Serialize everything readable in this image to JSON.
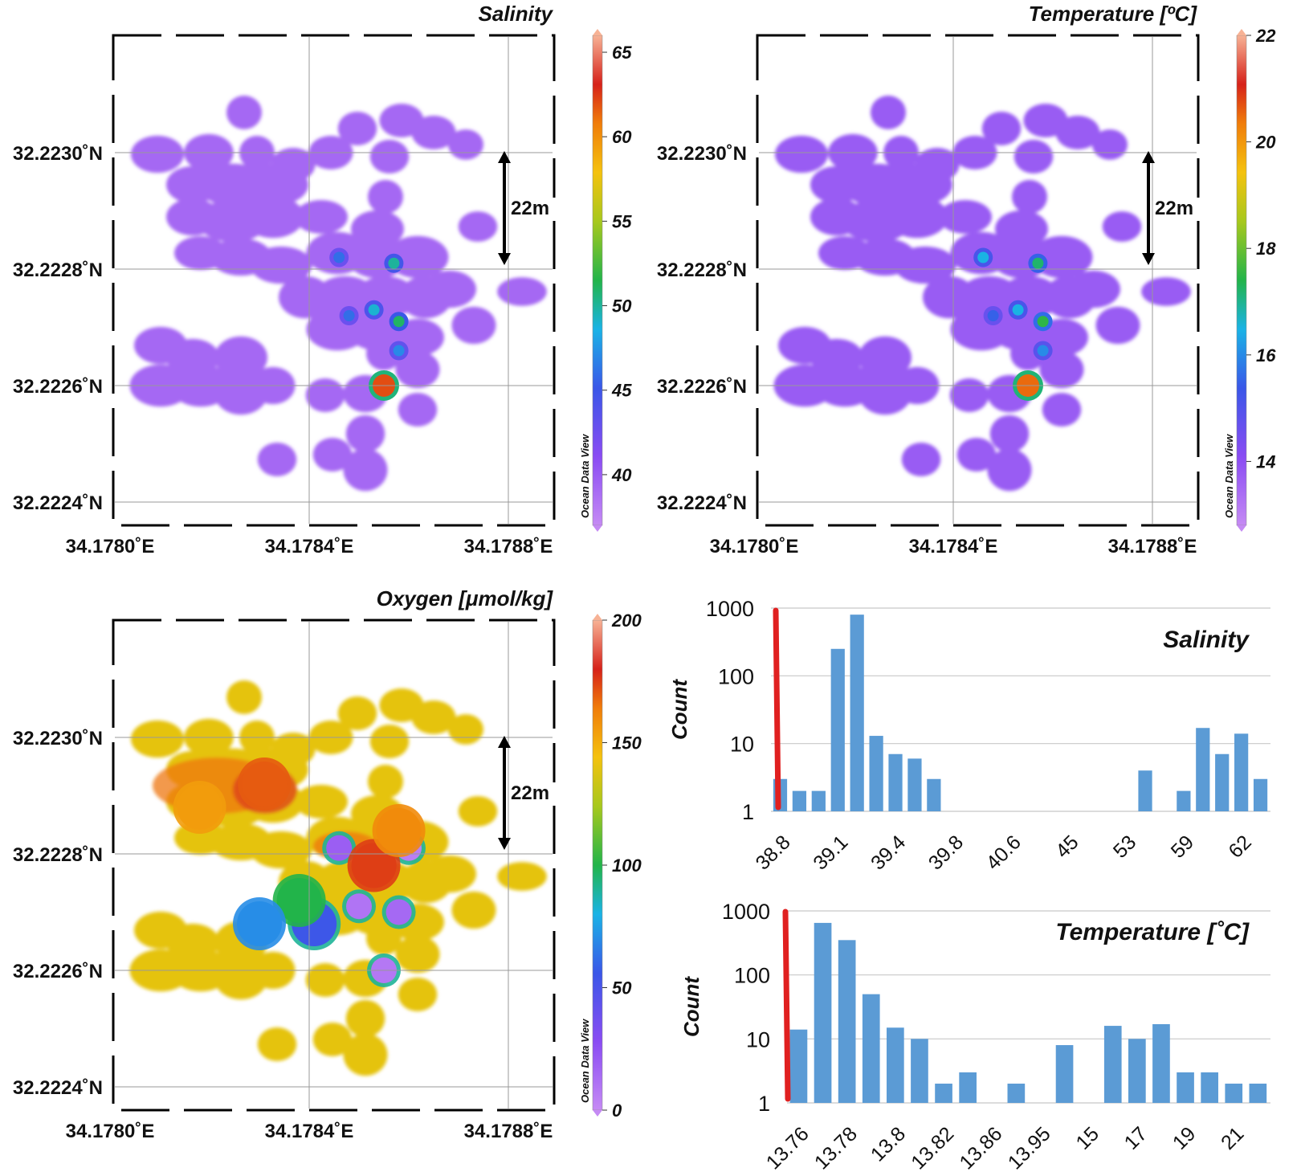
{
  "figure": {
    "map_axis": {
      "lat_labels": [
        "32.2230˚N",
        "32.2228˚N",
        "32.2226˚N",
        "32.2224˚N"
      ],
      "lon_labels": [
        "34.1780˚E",
        "34.1784˚E",
        "34.1788˚E"
      ],
      "lat_values": [
        32.223,
        32.2228,
        32.2226,
        32.2224
      ],
      "lon_values": [
        34.178,
        34.1784,
        34.1788
      ],
      "scale_bar_label": "22m",
      "watermark": "Ocean Data View"
    }
  },
  "chart_data": [
    {
      "type": "heatmap",
      "panel": "salinity-map",
      "title": "Salinity",
      "colorbar": {
        "ticks": [
          "65",
          "60",
          "55",
          "50",
          "45",
          "40"
        ],
        "min": 37,
        "max": 66
      },
      "background_value": 39.2,
      "hotspots": [
        {
          "lon": 34.17855,
          "lat": 32.2226,
          "value": 62
        },
        {
          "lon": 34.17858,
          "lat": 32.22271,
          "value": 51
        },
        {
          "lon": 34.17857,
          "lat": 32.22281,
          "value": 50
        },
        {
          "lon": 34.17853,
          "lat": 32.22273,
          "value": 49
        },
        {
          "lon": 34.17848,
          "lat": 32.22272,
          "value": 46
        },
        {
          "lon": 34.17846,
          "lat": 32.22282,
          "value": 46
        },
        {
          "lon": 34.17858,
          "lat": 32.22266,
          "value": 47
        }
      ]
    },
    {
      "type": "heatmap",
      "panel": "temperature-map",
      "title": "Temperature [ºC]",
      "colorbar": {
        "ticks": [
          "22",
          "20",
          "18",
          "16",
          "14"
        ],
        "min": 12.8,
        "max": 22
      },
      "background_value": 13.77,
      "hotspots": [
        {
          "lon": 34.17855,
          "lat": 32.2226,
          "value": 20.5
        },
        {
          "lon": 34.17858,
          "lat": 32.22271,
          "value": 17.5
        },
        {
          "lon": 34.17857,
          "lat": 32.22281,
          "value": 17.2
        },
        {
          "lon": 34.17853,
          "lat": 32.22273,
          "value": 16.5
        },
        {
          "lon": 34.17848,
          "lat": 32.22272,
          "value": 15.5
        },
        {
          "lon": 34.17846,
          "lat": 32.22282,
          "value": 16.5
        },
        {
          "lon": 34.17858,
          "lat": 32.22266,
          "value": 16.0
        }
      ]
    },
    {
      "type": "heatmap",
      "panel": "oxygen-map",
      "title": "Oxygen [μmol/kg]",
      "colorbar": {
        "ticks": [
          "200",
          "150",
          "100",
          "50",
          "0"
        ],
        "min": 0,
        "max": 200
      },
      "background_value": 140,
      "hotspots": [
        {
          "lon": 34.17855,
          "lat": 32.2226,
          "value": 8
        },
        {
          "lon": 34.17858,
          "lat": 32.2227,
          "value": 15
        },
        {
          "lon": 34.1785,
          "lat": 32.22271,
          "value": 10
        },
        {
          "lon": 34.17846,
          "lat": 32.22281,
          "value": 20
        },
        {
          "lon": 34.1786,
          "lat": 32.22281,
          "value": 5
        },
        {
          "lon": 34.17841,
          "lat": 32.22268,
          "value": 55
        },
        {
          "lon": 34.17838,
          "lat": 32.22272,
          "value": 100
        },
        {
          "lon": 34.1783,
          "lat": 32.22268,
          "value": 70
        },
        {
          "lon": 34.17831,
          "lat": 32.22292,
          "value": 170
        },
        {
          "lon": 34.17853,
          "lat": 32.22278,
          "value": 175
        },
        {
          "lon": 34.17858,
          "lat": 32.22284,
          "value": 160
        },
        {
          "lon": 34.17818,
          "lat": 32.22288,
          "value": 155
        }
      ]
    },
    {
      "type": "bar",
      "panel": "salinity-histogram",
      "title": "Salinity",
      "ylabel": "Count",
      "yscale": "log",
      "ylim": [
        1,
        1000
      ],
      "yticks": [
        "1000",
        "100",
        "10",
        "1"
      ],
      "xtick_labels": [
        "38.8",
        "39.1",
        "39.4",
        "39.8",
        "40.6",
        "45",
        "53",
        "59",
        "62"
      ],
      "values": [
        3,
        2,
        2,
        250,
        800,
        13,
        7,
        6,
        3,
        0,
        0,
        0,
        0,
        0,
        0,
        0,
        0,
        0,
        0,
        4,
        0,
        2,
        17,
        7,
        14,
        3
      ],
      "detection_limit_line": true
    },
    {
      "type": "bar",
      "panel": "temperature-histogram",
      "title": "Temperature [˚C]",
      "ylabel": "Count",
      "yscale": "log",
      "ylim": [
        1,
        1000
      ],
      "yticks": [
        "1000",
        "100",
        "10",
        "1"
      ],
      "xtick_labels": [
        "13.76",
        "13.78",
        "13.8",
        "13.82",
        "13.86",
        "13.95",
        "15",
        "17",
        "19",
        "21"
      ],
      "values": [
        14,
        650,
        350,
        50,
        15,
        10,
        2,
        3,
        0,
        2,
        0,
        8,
        0,
        16,
        10,
        17,
        3,
        3,
        2,
        2
      ],
      "detection_limit_line": true
    }
  ]
}
